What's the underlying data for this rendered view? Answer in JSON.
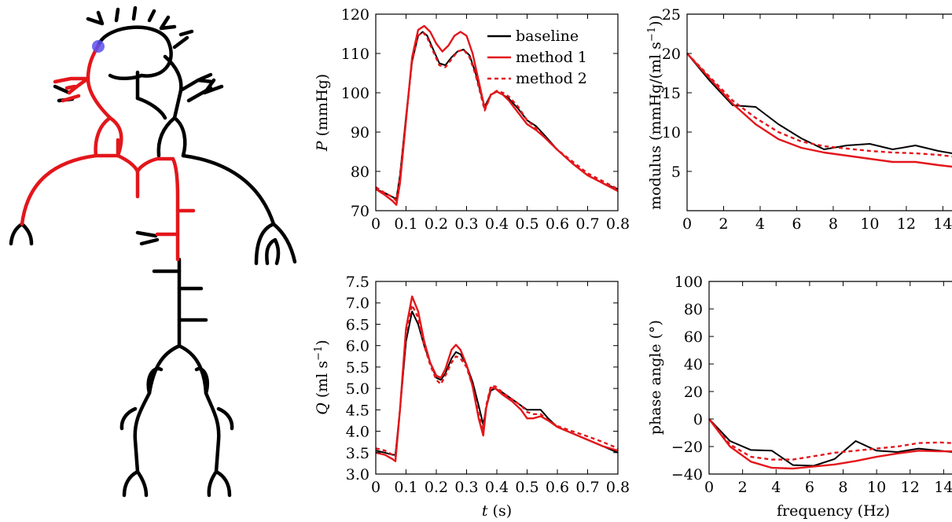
{
  "colors": {
    "black": "#000000",
    "red": "#e3161b",
    "marker": "#5a4ff0"
  },
  "legend": [
    {
      "label": "baseline",
      "style": "solid-black"
    },
    {
      "label": "method 1",
      "style": "solid-red"
    },
    {
      "label": "method 2",
      "style": "dashed-red"
    }
  ],
  "labels": {
    "pressure_y": "P",
    "pressure_y_unit": "(mmHg)",
    "flow_y": "Q",
    "flow_y_unit_base": "(ml s",
    "flow_y_unit_sup": "−1",
    "flow_y_unit_end": ")",
    "time_x": "t",
    "time_x_unit": "(s)",
    "modulus_y_base": "modulus (mmHg/(ml s",
    "modulus_y_sup": "−1",
    "modulus_y_end": "))",
    "phase_y": "phase angle (°)",
    "freq_x": "frequency (Hz)"
  },
  "chart_data": [
    {
      "id": "pressure",
      "type": "line",
      "xlim": [
        0,
        0.8
      ],
      "ylim": [
        70,
        120
      ],
      "xticks": [
        0,
        0.1,
        0.2,
        0.3,
        0.4,
        0.5,
        0.6,
        0.7,
        0.8
      ],
      "xtick_labels": [
        "0",
        "0.1",
        "0.2",
        "0.3",
        "0.4",
        "0.5",
        "0.6",
        "0.7",
        "0.8"
      ],
      "yticks": [
        70,
        80,
        90,
        100,
        110,
        120
      ],
      "ytick_labels": [
        "70",
        "80",
        "90",
        "100",
        "110",
        "120"
      ],
      "series": [
        {
          "name": "baseline",
          "style": "solid-black",
          "x": [
            0,
            0.03,
            0.055,
            0.068,
            0.08,
            0.1,
            0.12,
            0.14,
            0.155,
            0.17,
            0.19,
            0.21,
            0.23,
            0.25,
            0.27,
            0.29,
            0.31,
            0.33,
            0.35,
            0.36,
            0.37,
            0.38,
            0.4,
            0.42,
            0.44,
            0.47,
            0.5,
            0.53,
            0.56,
            0.6,
            0.65,
            0.7,
            0.75,
            0.8
          ],
          "y": [
            75.5,
            74.5,
            73.5,
            73,
            79,
            94,
            108,
            114.5,
            115.5,
            114.5,
            111,
            107.5,
            107,
            109,
            110.5,
            111,
            109.5,
            105,
            99,
            96.5,
            98,
            99.5,
            100.3,
            99.5,
            98.5,
            96,
            93,
            91.5,
            89,
            85.5,
            82,
            79,
            77,
            75.5
          ]
        },
        {
          "name": "method 1",
          "style": "solid-red",
          "x": [
            0,
            0.03,
            0.055,
            0.068,
            0.08,
            0.1,
            0.12,
            0.14,
            0.16,
            0.18,
            0.2,
            0.22,
            0.24,
            0.26,
            0.28,
            0.3,
            0.32,
            0.34,
            0.36,
            0.37,
            0.38,
            0.4,
            0.42,
            0.44,
            0.47,
            0.5,
            0.53,
            0.56,
            0.6,
            0.65,
            0.7,
            0.75,
            0.8
          ],
          "y": [
            75.5,
            74,
            72.5,
            71.5,
            77,
            93,
            109,
            116,
            117,
            115.5,
            112.5,
            110.5,
            112,
            114.5,
            115.5,
            114.5,
            110,
            103,
            96,
            97.5,
            99.5,
            100.3,
            99.5,
            98,
            95,
            92,
            90.5,
            88.5,
            85.5,
            82,
            79,
            77,
            75
          ]
        },
        {
          "name": "method 2",
          "style": "dashed-red",
          "x": [
            0,
            0.03,
            0.055,
            0.068,
            0.08,
            0.1,
            0.12,
            0.14,
            0.155,
            0.17,
            0.19,
            0.21,
            0.23,
            0.25,
            0.27,
            0.29,
            0.31,
            0.33,
            0.35,
            0.36,
            0.37,
            0.38,
            0.4,
            0.42,
            0.44,
            0.47,
            0.5,
            0.53,
            0.56,
            0.6,
            0.65,
            0.7,
            0.75,
            0.8
          ],
          "y": [
            76,
            74.5,
            73.5,
            72.5,
            78.5,
            93.5,
            108,
            114.5,
            115.5,
            114,
            110.5,
            107,
            106.5,
            108.5,
            110.5,
            111,
            109,
            104.5,
            98.5,
            95.5,
            97.5,
            99.5,
            100.5,
            100,
            99,
            96.5,
            93,
            91,
            88.5,
            85.5,
            82.5,
            79.5,
            77.5,
            75.5
          ]
        }
      ]
    },
    {
      "id": "flow",
      "type": "line",
      "xlim": [
        0,
        0.8
      ],
      "ylim": [
        3.0,
        7.5
      ],
      "xticks": [
        0,
        0.1,
        0.2,
        0.3,
        0.4,
        0.5,
        0.6,
        0.7,
        0.8
      ],
      "xtick_labels": [
        "0",
        "0.1",
        "0.2",
        "0.3",
        "0.4",
        "0.5",
        "0.6",
        "0.7",
        "0.8"
      ],
      "yticks": [
        3.0,
        3.5,
        4.0,
        4.5,
        5.0,
        5.5,
        6.0,
        6.5,
        7.0,
        7.5
      ],
      "ytick_labels": [
        "3.0",
        "3.5",
        "4.0",
        "4.5",
        "5.0",
        "5.5",
        "6.0",
        "6.5",
        "7.0",
        "7.5"
      ],
      "series": [
        {
          "name": "baseline",
          "style": "solid-black",
          "x": [
            0,
            0.03,
            0.055,
            0.065,
            0.08,
            0.1,
            0.12,
            0.14,
            0.16,
            0.18,
            0.2,
            0.215,
            0.23,
            0.25,
            0.265,
            0.28,
            0.3,
            0.32,
            0.34,
            0.355,
            0.365,
            0.38,
            0.395,
            0.42,
            0.45,
            0.48,
            0.5,
            0.52,
            0.545,
            0.57,
            0.6,
            0.65,
            0.7,
            0.75,
            0.8
          ],
          "y": [
            3.55,
            3.5,
            3.45,
            3.45,
            4.5,
            6.1,
            6.8,
            6.5,
            6.0,
            5.6,
            5.25,
            5.2,
            5.35,
            5.7,
            5.85,
            5.8,
            5.55,
            5.15,
            4.6,
            4.15,
            4.55,
            4.95,
            5.0,
            4.9,
            4.75,
            4.6,
            4.5,
            4.5,
            4.5,
            4.3,
            4.1,
            3.95,
            3.8,
            3.65,
            3.5
          ]
        },
        {
          "name": "method 1",
          "style": "solid-red",
          "x": [
            0,
            0.03,
            0.055,
            0.065,
            0.08,
            0.1,
            0.12,
            0.14,
            0.16,
            0.18,
            0.2,
            0.215,
            0.23,
            0.25,
            0.265,
            0.28,
            0.3,
            0.32,
            0.34,
            0.355,
            0.365,
            0.38,
            0.395,
            0.42,
            0.45,
            0.48,
            0.5,
            0.52,
            0.545,
            0.57,
            0.6,
            0.65,
            0.7,
            0.75,
            0.8
          ],
          "y": [
            3.5,
            3.45,
            3.35,
            3.3,
            4.5,
            6.4,
            7.15,
            6.8,
            6.1,
            5.6,
            5.3,
            5.25,
            5.45,
            5.9,
            6.02,
            5.9,
            5.55,
            5.05,
            4.3,
            3.9,
            4.55,
            5.02,
            5.0,
            4.85,
            4.7,
            4.5,
            4.3,
            4.3,
            4.35,
            4.25,
            4.1,
            3.95,
            3.8,
            3.65,
            3.55
          ]
        },
        {
          "name": "method 2",
          "style": "dashed-red",
          "x": [
            0,
            0.03,
            0.055,
            0.065,
            0.08,
            0.1,
            0.12,
            0.14,
            0.16,
            0.18,
            0.2,
            0.215,
            0.23,
            0.25,
            0.265,
            0.28,
            0.3,
            0.32,
            0.34,
            0.355,
            0.365,
            0.38,
            0.395,
            0.42,
            0.45,
            0.48,
            0.5,
            0.52,
            0.545,
            0.57,
            0.6,
            0.65,
            0.7,
            0.75,
            0.8
          ],
          "y": [
            3.6,
            3.55,
            3.45,
            3.4,
            4.5,
            6.3,
            6.95,
            6.65,
            6.0,
            5.55,
            5.2,
            5.1,
            5.3,
            5.6,
            5.75,
            5.7,
            5.5,
            5.05,
            4.4,
            4.05,
            4.6,
            5.05,
            5.05,
            4.9,
            4.75,
            4.6,
            4.45,
            4.4,
            4.4,
            4.25,
            4.12,
            4.0,
            3.88,
            3.75,
            3.6
          ]
        }
      ]
    },
    {
      "id": "modulus",
      "type": "line",
      "xlim": [
        0,
        14.5
      ],
      "ylim": [
        0,
        25
      ],
      "xticks": [
        0,
        2,
        4,
        6,
        8,
        10,
        12,
        14
      ],
      "xtick_labels": [
        "0",
        "2",
        "4",
        "6",
        "8",
        "10",
        "12",
        "14"
      ],
      "yticks": [
        5,
        10,
        15,
        20,
        25
      ],
      "ytick_labels": [
        "5",
        "10",
        "15",
        "20",
        "25"
      ],
      "series": [
        {
          "name": "baseline",
          "style": "solid-black",
          "x": [
            0,
            1.25,
            2.5,
            3.75,
            5,
            6.25,
            7.5,
            8.75,
            10,
            11.25,
            12.5,
            13.75,
            14.5
          ],
          "y": [
            20,
            16.5,
            13.4,
            13.2,
            11,
            9.2,
            7.8,
            8.3,
            8.5,
            7.8,
            8.3,
            7.6,
            7.3
          ]
        },
        {
          "name": "method 1",
          "style": "solid-red",
          "x": [
            0,
            1.25,
            2.5,
            3.75,
            5,
            6.25,
            7.5,
            8.75,
            10,
            11.25,
            12.5,
            13.75,
            14.5
          ],
          "y": [
            20,
            16.8,
            13.6,
            11,
            9.1,
            8,
            7.4,
            7,
            6.6,
            6.2,
            6.2,
            5.8,
            5.6
          ]
        },
        {
          "name": "method 2",
          "style": "dashed-red",
          "x": [
            0,
            1.25,
            2.5,
            3.75,
            5,
            6.25,
            7.5,
            8.75,
            10,
            11.25,
            12.5,
            13.75,
            14.5
          ],
          "y": [
            20,
            17,
            14,
            11.8,
            10,
            8.8,
            8.2,
            7.9,
            7.6,
            7.4,
            7.3,
            7.1,
            6.9
          ]
        }
      ]
    },
    {
      "id": "phase",
      "type": "line",
      "xlim": [
        0,
        14.5
      ],
      "ylim": [
        -40,
        100
      ],
      "xticks": [
        0,
        2,
        4,
        6,
        8,
        10,
        12,
        14
      ],
      "xtick_labels": [
        "0",
        "2",
        "4",
        "6",
        "8",
        "10",
        "12",
        "14"
      ],
      "yticks": [
        -40,
        -20,
        0,
        20,
        40,
        60,
        80,
        100
      ],
      "ytick_labels": [
        "−40",
        "−20",
        "0",
        "20",
        "40",
        "60",
        "80",
        "100"
      ],
      "series": [
        {
          "name": "baseline",
          "style": "solid-black",
          "x": [
            0,
            1.25,
            2.5,
            3.75,
            5,
            6.25,
            7.5,
            8.75,
            10,
            11.25,
            12.5,
            13.75,
            14.5
          ],
          "y": [
            0,
            -16,
            -22.5,
            -23,
            -33.5,
            -34,
            -29,
            -16,
            -23,
            -24,
            -21.5,
            -23,
            -24
          ]
        },
        {
          "name": "method 1",
          "style": "solid-red",
          "x": [
            0,
            1.25,
            2.5,
            3.75,
            5,
            6.25,
            7.5,
            8.75,
            10,
            11.25,
            12.5,
            13.75,
            14.5
          ],
          "y": [
            0,
            -20,
            -31,
            -35.5,
            -36,
            -34.5,
            -33,
            -30.5,
            -27.5,
            -25,
            -23,
            -23.5,
            -23.5
          ]
        },
        {
          "name": "method 2",
          "style": "dashed-red",
          "x": [
            0,
            1.25,
            2.5,
            3.75,
            5,
            6.25,
            7.5,
            8.75,
            10,
            11.25,
            12.5,
            13.75,
            14.5
          ],
          "y": [
            0,
            -18.5,
            -27.5,
            -29.5,
            -29.5,
            -27,
            -24.5,
            -23,
            -21.5,
            -20,
            -17.5,
            -17,
            -17.5
          ]
        }
      ]
    }
  ]
}
